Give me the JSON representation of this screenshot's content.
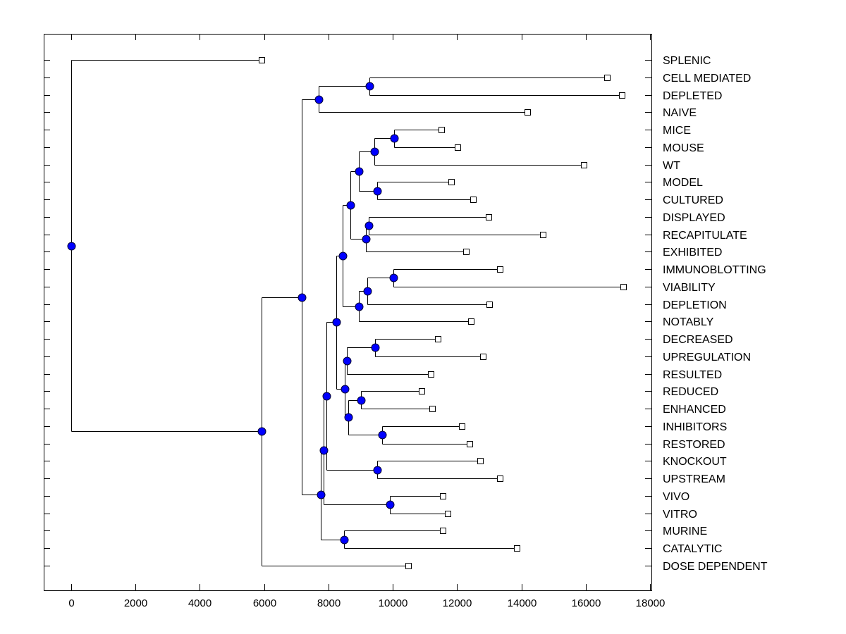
{
  "chart_data": {
    "type": "dendrogram",
    "title": "",
    "xlabel": "",
    "ylabel": "",
    "xlim": [
      -850,
      18000
    ],
    "x_ticks": [
      0,
      2000,
      4000,
      6000,
      8000,
      10000,
      12000,
      14000,
      16000,
      18000
    ],
    "x_tick_labels": [
      "0",
      "2000",
      "4000",
      "6000",
      "8000",
      "10000",
      "12000",
      "14000",
      "16000",
      "18000"
    ],
    "grid": false,
    "node_color": "#0000ff",
    "leaves": [
      {
        "name": "SPLENIC",
        "x": 5920
      },
      {
        "name": "CELL MEDIATED",
        "x": 16660
      },
      {
        "name": "DEPLETED",
        "x": 17120
      },
      {
        "name": "NAIVE",
        "x": 14190
      },
      {
        "name": "MICE",
        "x": 11510
      },
      {
        "name": "MOUSE",
        "x": 12020
      },
      {
        "name": "WT",
        "x": 15940
      },
      {
        "name": "MODEL",
        "x": 11820
      },
      {
        "name": "CULTURED",
        "x": 12500
      },
      {
        "name": "DISPLAYED",
        "x": 12980
      },
      {
        "name": "RECAPITULATE",
        "x": 14670
      },
      {
        "name": "EXHIBITED",
        "x": 12280
      },
      {
        "name": "IMMUNOBLOTTING",
        "x": 13330
      },
      {
        "name": "VIABILITY",
        "x": 17170
      },
      {
        "name": "DEPLETION",
        "x": 13000
      },
      {
        "name": "NOTABLY",
        "x": 12430
      },
      {
        "name": "DECREASED",
        "x": 11400
      },
      {
        "name": "UPREGULATION",
        "x": 12800
      },
      {
        "name": "RESULTED",
        "x": 11180
      },
      {
        "name": "REDUCED",
        "x": 10900
      },
      {
        "name": "ENHANCED",
        "x": 11230
      },
      {
        "name": "INHIBITORS",
        "x": 12150
      },
      {
        "name": "RESTORED",
        "x": 12390
      },
      {
        "name": "KNOCKOUT",
        "x": 12720
      },
      {
        "name": "UPSTREAM",
        "x": 13330
      },
      {
        "name": "VIVO",
        "x": 11550
      },
      {
        "name": "VITRO",
        "x": 11710
      },
      {
        "name": "MURINE",
        "x": 11550
      },
      {
        "name": "CATALYTIC",
        "x": 13860
      },
      {
        "name": "DOSE DEPENDENT",
        "x": 10480
      }
    ],
    "nodes": [
      {
        "id": "n0",
        "x": 0,
        "children": [
          "L0",
          "n1"
        ]
      },
      {
        "id": "n1",
        "x": 5920,
        "children": [
          "n2",
          "L29"
        ]
      },
      {
        "id": "n2",
        "x": 7170,
        "children": [
          "n3",
          "n4"
        ]
      },
      {
        "id": "n3",
        "x": 7700,
        "children": [
          "n5",
          "L3"
        ]
      },
      {
        "id": "n5",
        "x": 9270,
        "children": [
          "L1",
          "L2"
        ]
      },
      {
        "id": "n4",
        "x": 7760,
        "children": [
          "n6",
          "n7"
        ]
      },
      {
        "id": "n7",
        "x": 8490,
        "children": [
          "L27",
          "L28"
        ]
      },
      {
        "id": "n6",
        "x": 7850,
        "children": [
          "n8",
          "n9"
        ]
      },
      {
        "id": "n9",
        "x": 9910,
        "children": [
          "L25",
          "L26"
        ]
      },
      {
        "id": "n8",
        "x": 7940,
        "children": [
          "n10",
          "n11"
        ]
      },
      {
        "id": "n11",
        "x": 9520,
        "children": [
          "L23",
          "L24"
        ]
      },
      {
        "id": "n10",
        "x": 8240,
        "children": [
          "n12",
          "n13"
        ]
      },
      {
        "id": "n12",
        "x": 8440,
        "children": [
          "n14",
          "n15"
        ]
      },
      {
        "id": "n14",
        "x": 8680,
        "children": [
          "n16",
          "n20"
        ]
      },
      {
        "id": "n16",
        "x": 8940,
        "children": [
          "n17",
          "n19"
        ]
      },
      {
        "id": "n17",
        "x": 9430,
        "children": [
          "n18",
          "L6"
        ]
      },
      {
        "id": "n18",
        "x": 10040,
        "children": [
          "L4",
          "L5"
        ]
      },
      {
        "id": "n19",
        "x": 9520,
        "children": [
          "L7",
          "L8"
        ]
      },
      {
        "id": "n20",
        "x": 9160,
        "children": [
          "n21",
          "L11"
        ]
      },
      {
        "id": "n21",
        "x": 9250,
        "children": [
          "L9",
          "L10"
        ]
      },
      {
        "id": "n15",
        "x": 8940,
        "children": [
          "n22",
          "L15"
        ]
      },
      {
        "id": "n22",
        "x": 9210,
        "children": [
          "n23",
          "L14"
        ]
      },
      {
        "id": "n23",
        "x": 10020,
        "children": [
          "L12",
          "L13"
        ]
      },
      {
        "id": "n13",
        "x": 8510,
        "children": [
          "n24",
          "n26"
        ]
      },
      {
        "id": "n24",
        "x": 8570,
        "children": [
          "n25",
          "L18"
        ]
      },
      {
        "id": "n25",
        "x": 9450,
        "children": [
          "L16",
          "L17"
        ]
      },
      {
        "id": "n26",
        "x": 8620,
        "children": [
          "n27",
          "n28"
        ]
      },
      {
        "id": "n27",
        "x": 9010,
        "children": [
          "L19",
          "L20"
        ]
      },
      {
        "id": "n28",
        "x": 9670,
        "children": [
          "L21",
          "L22"
        ]
      }
    ]
  }
}
